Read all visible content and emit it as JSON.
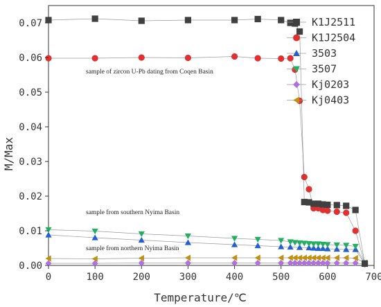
{
  "chart_data": {
    "type": "scatter",
    "xlabel": "Temperature/℃",
    "ylabel": "M/Max",
    "xlim": [
      0,
      700
    ],
    "ylim": [
      0,
      0.075
    ],
    "xticks": [
      "0",
      "100",
      "200",
      "300",
      "400",
      "500",
      "600",
      "700"
    ],
    "yticks": [
      "0.00",
      "0.01",
      "0.02",
      "0.03",
      "0.04",
      "0.05",
      "0.06",
      "0.07"
    ],
    "grid": false,
    "legend_position": "top-right",
    "annotations": [
      "sample of zircon U-Pb dating from Coqen Basin",
      "sample from southern Nyima Basin",
      "sample from northern Nyima Basin"
    ],
    "series": [
      {
        "name": "K1J2511",
        "marker": "square",
        "color": "#404040",
        "x": [
          0,
          100,
          200,
          300,
          400,
          450,
          500,
          520,
          530,
          540,
          550,
          560,
          570,
          580,
          590,
          600,
          620,
          640,
          660,
          680
        ],
        "y": [
          0.0708,
          0.0712,
          0.0706,
          0.0708,
          0.0708,
          0.0711,
          0.0708,
          0.07,
          0.0698,
          0.0675,
          0.0183,
          0.0182,
          0.0178,
          0.0178,
          0.0176,
          0.0175,
          0.0174,
          0.0172,
          0.016,
          0.0005
        ]
      },
      {
        "name": "K1J2504",
        "marker": "circle",
        "color": "#e03030",
        "x": [
          0,
          100,
          200,
          300,
          400,
          450,
          500,
          520,
          530,
          540,
          550,
          560,
          570,
          580,
          590,
          600,
          620,
          640,
          660,
          680
        ],
        "y": [
          0.0598,
          0.0598,
          0.06,
          0.0599,
          0.0603,
          0.0598,
          0.0597,
          0.0598,
          0.0565,
          0.0475,
          0.0255,
          0.022,
          0.0165,
          0.0165,
          0.016,
          0.0158,
          0.0155,
          0.0152,
          0.01,
          0.0005
        ]
      },
      {
        "name": "3503",
        "marker": "triangle-up",
        "color": "#2060d0",
        "x": [
          0,
          100,
          200,
          300,
          400,
          450,
          500,
          520,
          540,
          560,
          570,
          580,
          590,
          600,
          620,
          640,
          660,
          680
        ],
        "y": [
          0.0088,
          0.008,
          0.0073,
          0.0066,
          0.006,
          0.0057,
          0.0054,
          0.0053,
          0.0052,
          0.0051,
          0.005,
          0.0049,
          0.0049,
          0.0048,
          0.0047,
          0.0046,
          0.0046,
          0.0005
        ]
      },
      {
        "name": "3507",
        "marker": "triangle-down",
        "color": "#20b060",
        "x": [
          0,
          100,
          200,
          300,
          400,
          450,
          500,
          520,
          530,
          540,
          550,
          560,
          570,
          580,
          590,
          600,
          620,
          640,
          660,
          680
        ],
        "y": [
          0.0103,
          0.0099,
          0.0091,
          0.0085,
          0.0078,
          0.0075,
          0.0072,
          0.0068,
          0.0066,
          0.0065,
          0.0064,
          0.0063,
          0.0062,
          0.0062,
          0.0061,
          0.006,
          0.0059,
          0.0058,
          0.0055,
          0.0008
        ]
      },
      {
        "name": "Kj0203",
        "marker": "diamond",
        "color": "#b070e0",
        "x": [
          0,
          100,
          200,
          300,
          400,
          450,
          500,
          520,
          530,
          540,
          550,
          560,
          570,
          580,
          590,
          600,
          620,
          640,
          660,
          680
        ],
        "y": [
          0.0006,
          0.0006,
          0.0007,
          0.0007,
          0.0007,
          0.0007,
          0.0007,
          0.0007,
          0.0007,
          0.0007,
          0.0007,
          0.0007,
          0.0007,
          0.0007,
          0.0007,
          0.0007,
          0.0007,
          0.0007,
          0.0007,
          0.0003
        ]
      },
      {
        "name": "Kj0403",
        "marker": "triangle-left",
        "color": "#c09010",
        "x": [
          0,
          100,
          200,
          300,
          400,
          450,
          500,
          520,
          530,
          540,
          550,
          560,
          570,
          580,
          590,
          600,
          620,
          640,
          660,
          680
        ],
        "y": [
          0.002,
          0.0019,
          0.0021,
          0.0022,
          0.0022,
          0.0022,
          0.0022,
          0.0022,
          0.0022,
          0.0022,
          0.0022,
          0.0022,
          0.0022,
          0.0022,
          0.0022,
          0.0022,
          0.0022,
          0.0022,
          0.0021,
          0.0008
        ]
      }
    ]
  }
}
